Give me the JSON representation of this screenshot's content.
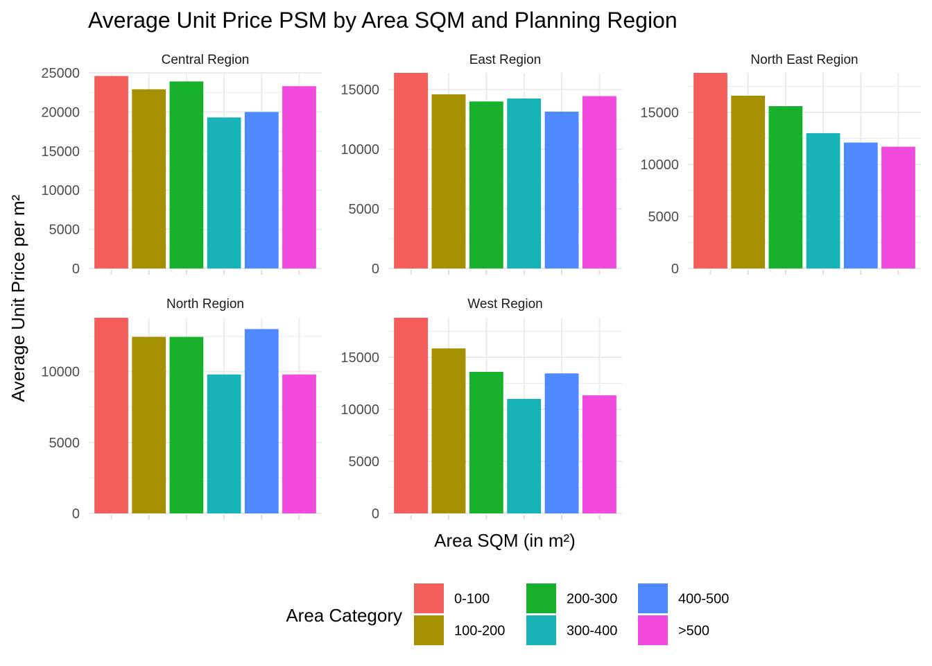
{
  "chart_data": {
    "type": "bar",
    "title": "Average Unit Price PSM by Area SQM and Planning Region",
    "xlabel": "Area SQM (in m²)",
    "ylabel": "Average Unit Price per m²",
    "categories": [
      "0-100",
      "100-200",
      "200-300",
      "300-400",
      "400-500",
      ">500"
    ],
    "colors": [
      "#F35E5A",
      "#A59000",
      "#17B12B",
      "#17B3B7",
      "#4F89FF",
      "#F14ADE"
    ],
    "grid": true,
    "legend": {
      "title": "Area Category",
      "position": "bottom",
      "items": [
        "0-100",
        "100-200",
        "200-300",
        "300-400",
        "400-500",
        ">500"
      ]
    },
    "panels": [
      {
        "name": "Central Region",
        "values": [
          24600,
          22900,
          23900,
          19300,
          20000,
          23300
        ],
        "ylim": [
          0,
          25000
        ],
        "yticks": [
          0,
          5000,
          10000,
          15000,
          20000,
          25000
        ],
        "ytick_labels": [
          "0",
          "5000",
          "10000",
          "15000",
          "20000",
          "25000"
        ]
      },
      {
        "name": "East Region",
        "values": [
          16400,
          14600,
          14000,
          14250,
          13150,
          14450
        ],
        "ylim": [
          0,
          16400
        ],
        "yticks": [
          0,
          5000,
          10000,
          15000
        ],
        "ytick_labels": [
          "0",
          "5000",
          "10000",
          "15000"
        ]
      },
      {
        "name": "North East Region",
        "values": [
          18800,
          16600,
          15600,
          13000,
          12100,
          11700
        ],
        "ylim": [
          0,
          18800
        ],
        "yticks": [
          0,
          5000,
          10000,
          15000
        ],
        "ytick_labels": [
          "0",
          "5000",
          "10000",
          "15000"
        ]
      },
      {
        "name": "North Region",
        "values": [
          13800,
          12450,
          12450,
          9800,
          13000,
          9800
        ],
        "ylim": [
          0,
          13800
        ],
        "yticks": [
          0,
          5000,
          10000
        ],
        "ytick_labels": [
          "0",
          "5000",
          "10000"
        ]
      },
      {
        "name": "West Region",
        "values": [
          18800,
          15850,
          13600,
          11000,
          13450,
          11350
        ],
        "ylim": [
          0,
          18800
        ],
        "yticks": [
          0,
          5000,
          10000,
          15000
        ],
        "ytick_labels": [
          "0",
          "5000",
          "10000",
          "15000"
        ]
      }
    ]
  }
}
